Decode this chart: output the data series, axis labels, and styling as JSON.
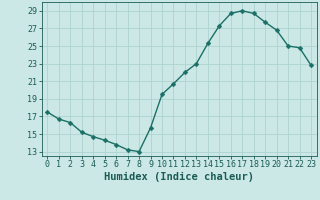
{
  "x": [
    0,
    1,
    2,
    3,
    4,
    5,
    6,
    7,
    8,
    9,
    10,
    11,
    12,
    13,
    14,
    15,
    16,
    17,
    18,
    19,
    20,
    21,
    22,
    23
  ],
  "y": [
    17.5,
    16.7,
    16.3,
    15.2,
    14.7,
    14.3,
    13.8,
    13.2,
    13.0,
    15.7,
    19.5,
    20.7,
    22.0,
    23.0,
    25.3,
    27.3,
    28.7,
    29.0,
    28.7,
    27.7,
    26.8,
    25.0,
    24.8,
    22.8
  ],
  "line_color": "#1a7066",
  "marker_color": "#1a7066",
  "bg_color": "#cce8e6",
  "grid_color": "#aed4d0",
  "xlabel": "Humidex (Indice chaleur)",
  "ylim": [
    12.5,
    30.0
  ],
  "xlim": [
    -0.5,
    23.5
  ],
  "yticks": [
    13,
    15,
    17,
    19,
    21,
    23,
    25,
    27,
    29
  ],
  "xticks": [
    0,
    1,
    2,
    3,
    4,
    5,
    6,
    7,
    8,
    9,
    10,
    11,
    12,
    13,
    14,
    15,
    16,
    17,
    18,
    19,
    20,
    21,
    22,
    23
  ],
  "xtick_labels": [
    "0",
    "1",
    "2",
    "3",
    "4",
    "5",
    "6",
    "7",
    "8",
    "9",
    "10",
    "11",
    "12",
    "13",
    "14",
    "15",
    "16",
    "17",
    "18",
    "19",
    "20",
    "21",
    "22",
    "23"
  ],
  "font_color": "#1a5c55",
  "tick_fontsize": 6.0,
  "label_fontsize": 7.5,
  "marker_size": 2.5,
  "line_width": 1.0
}
